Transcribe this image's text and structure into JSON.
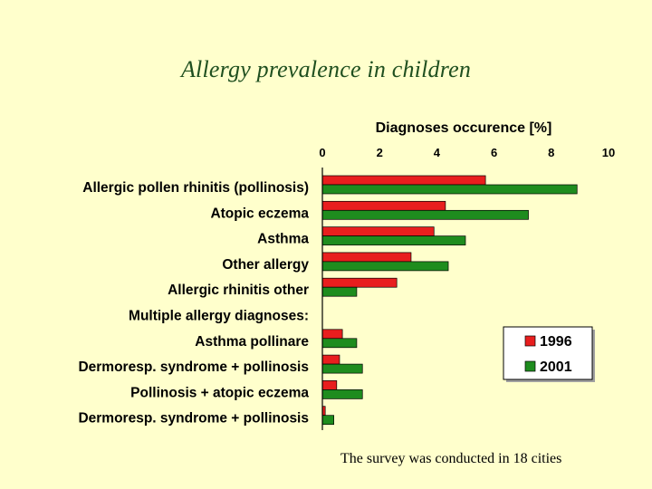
{
  "slide": {
    "title": "Allergy prevalence in children",
    "footnote": "The survey was conducted in 18 cities"
  },
  "chart_data": {
    "type": "bar",
    "orientation": "horizontal",
    "xlabel": "Diagnoses occurence [%]",
    "xlim": [
      0,
      10
    ],
    "xticks": [
      0,
      2,
      4,
      6,
      8,
      10
    ],
    "categories": [
      "Allergic pollen rhinitis (pollinosis)",
      "Atopic eczema",
      "Asthma",
      "Other allergy",
      "Allergic rhinitis other",
      "Multiple allergy diagnoses:",
      "Asthma pollinare",
      "Dermoresp. syndrome + pollinosis",
      "Pollinosis + atopic eczema",
      "Dermoresp. syndrome + pollinosis"
    ],
    "series": [
      {
        "name": "1996",
        "color": "#E81E1E",
        "values": [
          5.7,
          4.3,
          3.9,
          3.1,
          2.6,
          0,
          0.7,
          0.6,
          0.5,
          0.1
        ]
      },
      {
        "name": "2001",
        "color": "#1E8C1E",
        "values": [
          8.9,
          7.2,
          5.0,
          4.4,
          1.2,
          0,
          1.2,
          1.4,
          1.4,
          0.4
        ]
      }
    ],
    "legend_position": "bottom-right",
    "grid": false
  }
}
